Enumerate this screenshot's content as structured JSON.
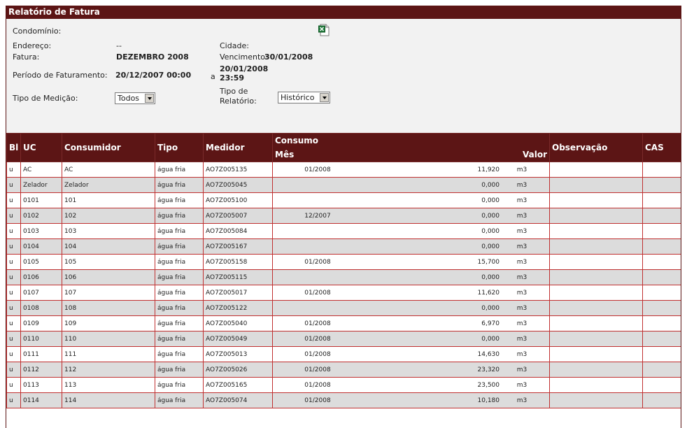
{
  "report": {
    "title": "Relatório de Fatura",
    "condominio_label": "Condomínio:",
    "condominio_value": "",
    "endereco_label": "Endereço:",
    "endereco_value": "--",
    "cidade_label": "Cidade:",
    "cidade_value": "",
    "fatura_label": "Fatura:",
    "fatura_value": "DEZEMBRO 2008",
    "vencimento_label": "Vencimento:",
    "vencimento_value": "30/01/2008",
    "periodo_label": "Período de Faturamento:",
    "periodo_start": "20/12/2007 00:00",
    "periodo_sep": "a",
    "periodo_end_date": "20/01/2008",
    "periodo_end_time": "23:59",
    "tipo_medicao_label": "Tipo de Medição:",
    "tipo_medicao_value": "Todos",
    "tipo_relatorio_label_1": "Tipo de",
    "tipo_relatorio_label_2": "Relatório:",
    "tipo_relatorio_value": "Histórico",
    "export_icon": "excel-icon"
  },
  "table": {
    "headers": {
      "bl": "Bl",
      "uc": "UC",
      "consumidor": "Consumidor",
      "tipo": "Tipo",
      "medidor": "Medidor",
      "consumo": "Consumo",
      "mes": "Mês",
      "valor": "Valor",
      "observacao": "Observação",
      "cas": "CAS"
    },
    "rows": [
      {
        "bl": "u",
        "uc": "AC",
        "consumidor": "AC",
        "tipo": "água fria",
        "medidor": "AO7Z005135",
        "mes": "01/2008",
        "valor": "11,920",
        "unidade": "m3"
      },
      {
        "bl": "u",
        "uc": "Zelador",
        "consumidor": "Zelador",
        "tipo": "água fria",
        "medidor": "AO7Z005045",
        "mes": "",
        "valor": "0,000",
        "unidade": "m3"
      },
      {
        "bl": "u",
        "uc": "0101",
        "consumidor": "101",
        "tipo": "água fria",
        "medidor": "AO7Z005100",
        "mes": "",
        "valor": "0,000",
        "unidade": "m3"
      },
      {
        "bl": "u",
        "uc": "0102",
        "consumidor": "102",
        "tipo": "água fria",
        "medidor": "AO7Z005007",
        "mes": "12/2007",
        "valor": "0,000",
        "unidade": "m3"
      },
      {
        "bl": "u",
        "uc": "0103",
        "consumidor": "103",
        "tipo": "água fria",
        "medidor": "AO7Z005084",
        "mes": "",
        "valor": "0,000",
        "unidade": "m3"
      },
      {
        "bl": "u",
        "uc": "0104",
        "consumidor": "104",
        "tipo": "água fria",
        "medidor": "AO7Z005167",
        "mes": "",
        "valor": "0,000",
        "unidade": "m3"
      },
      {
        "bl": "u",
        "uc": "0105",
        "consumidor": "105",
        "tipo": "água fria",
        "medidor": "AO7Z005158",
        "mes": "01/2008",
        "valor": "15,700",
        "unidade": "m3"
      },
      {
        "bl": "u",
        "uc": "0106",
        "consumidor": "106",
        "tipo": "água fria",
        "medidor": "AO7Z005115",
        "mes": "",
        "valor": "0,000",
        "unidade": "m3"
      },
      {
        "bl": "u",
        "uc": "0107",
        "consumidor": "107",
        "tipo": "água fria",
        "medidor": "AO7Z005017",
        "mes": "01/2008",
        "valor": "11,620",
        "unidade": "m3"
      },
      {
        "bl": "u",
        "uc": "0108",
        "consumidor": "108",
        "tipo": "água fria",
        "medidor": "AO7Z005122",
        "mes": "",
        "valor": "0,000",
        "unidade": "m3"
      },
      {
        "bl": "u",
        "uc": "0109",
        "consumidor": "109",
        "tipo": "água fria",
        "medidor": "AO7Z005040",
        "mes": "01/2008",
        "valor": "6,970",
        "unidade": "m3"
      },
      {
        "bl": "u",
        "uc": "0110",
        "consumidor": "110",
        "tipo": "água fria",
        "medidor": "AO7Z005049",
        "mes": "01/2008",
        "valor": "0,000",
        "unidade": "m3"
      },
      {
        "bl": "u",
        "uc": "0111",
        "consumidor": "111",
        "tipo": "água fria",
        "medidor": "AO7Z005013",
        "mes": "01/2008",
        "valor": "14,630",
        "unidade": "m3"
      },
      {
        "bl": "u",
        "uc": "0112",
        "consumidor": "112",
        "tipo": "água fria",
        "medidor": "AO7Z005026",
        "mes": "01/2008",
        "valor": "23,320",
        "unidade": "m3"
      },
      {
        "bl": "u",
        "uc": "0113",
        "consumidor": "113",
        "tipo": "água fria",
        "medidor": "AO7Z005165",
        "mes": "01/2008",
        "valor": "23,500",
        "unidade": "m3"
      },
      {
        "bl": "u",
        "uc": "0114",
        "consumidor": "114",
        "tipo": "água fria",
        "medidor": "AO7Z005074",
        "mes": "01/2008",
        "valor": "10,180",
        "unidade": "m3"
      }
    ]
  },
  "colors": {
    "header_bg": "#5c1515",
    "row_alt": "#dcdcdc",
    "cell_border": "#c03030"
  }
}
